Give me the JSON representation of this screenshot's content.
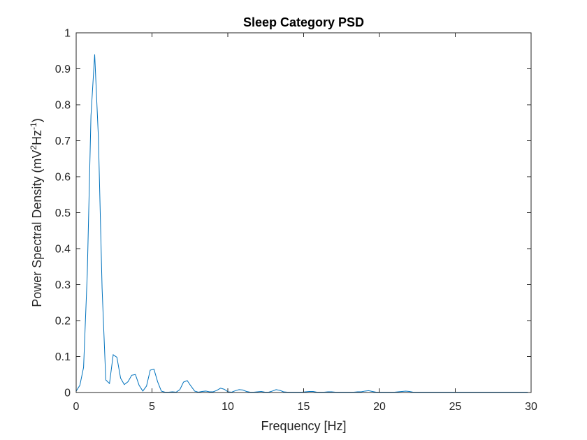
{
  "chart_data": {
    "type": "line",
    "title": "Sleep Category PSD",
    "xlabel": "Frequency [Hz]",
    "ylabel": {
      "prefix": "Power Spectral Density (mV",
      "sup1": "2",
      "mid": "Hz",
      "sup2": "-1",
      "suffix": ")"
    },
    "xlim": [
      0,
      30
    ],
    "ylim": [
      0,
      1
    ],
    "xticks": [
      0,
      5,
      10,
      15,
      20,
      25,
      30
    ],
    "yticks": [
      0,
      0.1,
      0.2,
      0.3,
      0.4,
      0.5,
      0.6,
      0.7,
      0.8,
      0.9,
      1
    ],
    "ytick_labels": [
      "0",
      "0.1",
      "0.2",
      "0.3",
      "0.4",
      "0.5",
      "0.6",
      "0.7",
      "0.8",
      "0.9",
      "1"
    ],
    "grid": false,
    "line_color": "#0072BD",
    "series": [
      {
        "x": [
          0,
          0.2441,
          0.4883,
          0.7324,
          0.9766,
          1.2207,
          1.4648,
          1.709,
          1.9531,
          2.1973,
          2.4414,
          2.6855,
          2.9297,
          3.1738,
          3.418,
          3.6621,
          3.9063,
          4.1504,
          4.3945,
          4.6387,
          4.8828,
          5.127,
          5.3711,
          5.6152,
          5.8594,
          6.1035,
          6.3477,
          6.5918,
          6.8359,
          7.0801,
          7.3242,
          7.5684,
          7.8125,
          8.0566,
          8.3008,
          8.5449,
          8.7891,
          9.0332,
          9.2773,
          9.5215,
          9.7656,
          10.0098,
          10.2539,
          10.498,
          10.7422,
          10.9863,
          11.2305,
          11.4746,
          11.7188,
          11.9629,
          12.207,
          12.4512,
          12.6953,
          12.9395,
          13.1836,
          13.4277,
          13.6719,
          13.916,
          14.1602,
          14.4043,
          14.6484,
          14.8926,
          15.1367,
          15.3809,
          15.625,
          15.8691,
          16.1133,
          16.3574,
          16.6016,
          16.8457,
          17.0898,
          17.334,
          17.5781,
          17.8223,
          18.0664,
          18.3105,
          18.5547,
          18.7988,
          19.043,
          19.2871,
          19.5313,
          19.7754,
          20.0195,
          20.2637,
          20.5078,
          20.752,
          20.9961,
          21.2402,
          21.4844,
          21.7285,
          21.9727,
          22.2168,
          22.4609,
          22.7051,
          22.9492,
          23.1934,
          23.4375,
          23.6816,
          23.9258,
          24.1699,
          24.4141,
          24.6582,
          24.9023,
          25.1465,
          25.3906,
          25.6348,
          25.8789,
          26.123,
          26.3672,
          26.6113,
          26.8555,
          27.0996,
          27.3438,
          27.5879,
          27.832,
          28.0762,
          28.3203,
          28.5645,
          28.8086,
          29.0527,
          29.2969,
          29.541,
          29.7852
        ],
        "y": [
          0.004,
          0.02,
          0.07,
          0.33,
          0.77,
          0.94,
          0.71,
          0.29,
          0.035,
          0.025,
          0.105,
          0.098,
          0.04,
          0.022,
          0.03,
          0.048,
          0.05,
          0.02,
          0.004,
          0.018,
          0.062,
          0.065,
          0.03,
          0.004,
          0.001,
          0.001,
          0.002,
          0.001,
          0.008,
          0.029,
          0.033,
          0.018,
          0.004,
          0.001,
          0.003,
          0.004,
          0.002,
          0.002,
          0.006,
          0.012,
          0.009,
          0.002,
          0.001,
          0.005,
          0.008,
          0.007,
          0.003,
          0.001,
          0.001,
          0.002,
          0.003,
          0.001,
          0.001,
          0.004,
          0.008,
          0.006,
          0.002,
          0.001,
          0.001,
          0.001,
          0.001,
          0.001,
          0.002,
          0.003,
          0.003,
          0.001,
          0.001,
          0.001,
          0.002,
          0.002,
          0.001,
          0.001,
          0.001,
          0.001,
          0.001,
          0.001,
          0.002,
          0.002,
          0.004,
          0.005,
          0.003,
          0.001,
          0.001,
          0.001,
          0.001,
          0.001,
          0.001,
          0.002,
          0.003,
          0.004,
          0.003,
          0.001,
          0.001,
          0.001,
          0.001,
          0.001,
          0.001,
          0.001,
          0.001,
          0.001,
          0.001,
          0.001,
          0.001,
          0.001,
          0.001,
          0.001,
          0.001,
          0.001,
          0.001,
          0.001,
          0.001,
          0.001,
          0.001,
          0.001,
          0.001,
          0.001,
          0.001,
          0.001,
          0.001,
          0.001,
          0.001,
          0.001,
          0.001
        ]
      }
    ]
  }
}
